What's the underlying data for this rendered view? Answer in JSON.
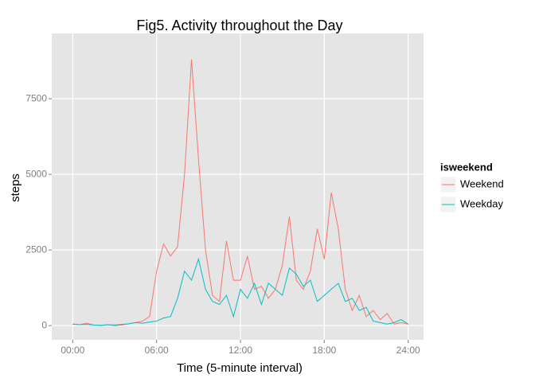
{
  "chart_data": {
    "type": "line",
    "title": "Fig5. Activity throughout the Day",
    "x_label": "Time (5-minute interval)",
    "y_label": "steps",
    "legend_title": "isweekend",
    "x": [
      0,
      0.5,
      1,
      1.5,
      2,
      2.5,
      3,
      3.5,
      4,
      4.5,
      5,
      5.5,
      6,
      6.5,
      7,
      7.5,
      8,
      8.5,
      9,
      9.5,
      10,
      10.5,
      11,
      11.5,
      12,
      12.5,
      13,
      13.5,
      14,
      14.5,
      15,
      15.5,
      16,
      16.5,
      17,
      17.5,
      18,
      18.5,
      19,
      19.5,
      20,
      20.5,
      21,
      21.5,
      22,
      22.5,
      23,
      23.5,
      24
    ],
    "series": [
      {
        "name": "Weekend",
        "color": "#F8766D",
        "values": [
          50,
          30,
          80,
          20,
          0,
          30,
          0,
          20,
          60,
          100,
          150,
          300,
          1800,
          2700,
          2300,
          2600,
          5000,
          8800,
          5500,
          2500,
          1000,
          800,
          2800,
          1500,
          1500,
          2300,
          1200,
          1300,
          900,
          1200,
          2000,
          3600,
          1500,
          1200,
          1800,
          3200,
          2200,
          4400,
          3200,
          1200,
          500,
          1000,
          300,
          500,
          200,
          400,
          50,
          100,
          50
        ]
      },
      {
        "name": "Weekday",
        "color": "#00BFC4",
        "values": [
          50,
          30,
          40,
          20,
          10,
          30,
          20,
          40,
          60,
          100,
          80,
          120,
          150,
          250,
          300,
          900,
          1800,
          1500,
          2200,
          1200,
          800,
          700,
          1000,
          300,
          1200,
          900,
          1400,
          700,
          1400,
          1200,
          1000,
          1900,
          1700,
          1300,
          1500,
          800,
          1000,
          1200,
          1400,
          800,
          900,
          500,
          600,
          150,
          100,
          50,
          100,
          200,
          50
        ]
      }
    ],
    "xlim": [
      -1.5,
      25.1
    ],
    "ylim": [
      -470,
      9660
    ],
    "xticks": [
      {
        "value": 0,
        "label": "00:00"
      },
      {
        "value": 6,
        "label": "06:00"
      },
      {
        "value": 12,
        "label": "12:00"
      },
      {
        "value": 18,
        "label": "18:00"
      },
      {
        "value": 24,
        "label": "24:00"
      }
    ],
    "yticks": [
      0,
      2500,
      5000,
      7500
    ],
    "grid": true,
    "legend_position": "right"
  }
}
